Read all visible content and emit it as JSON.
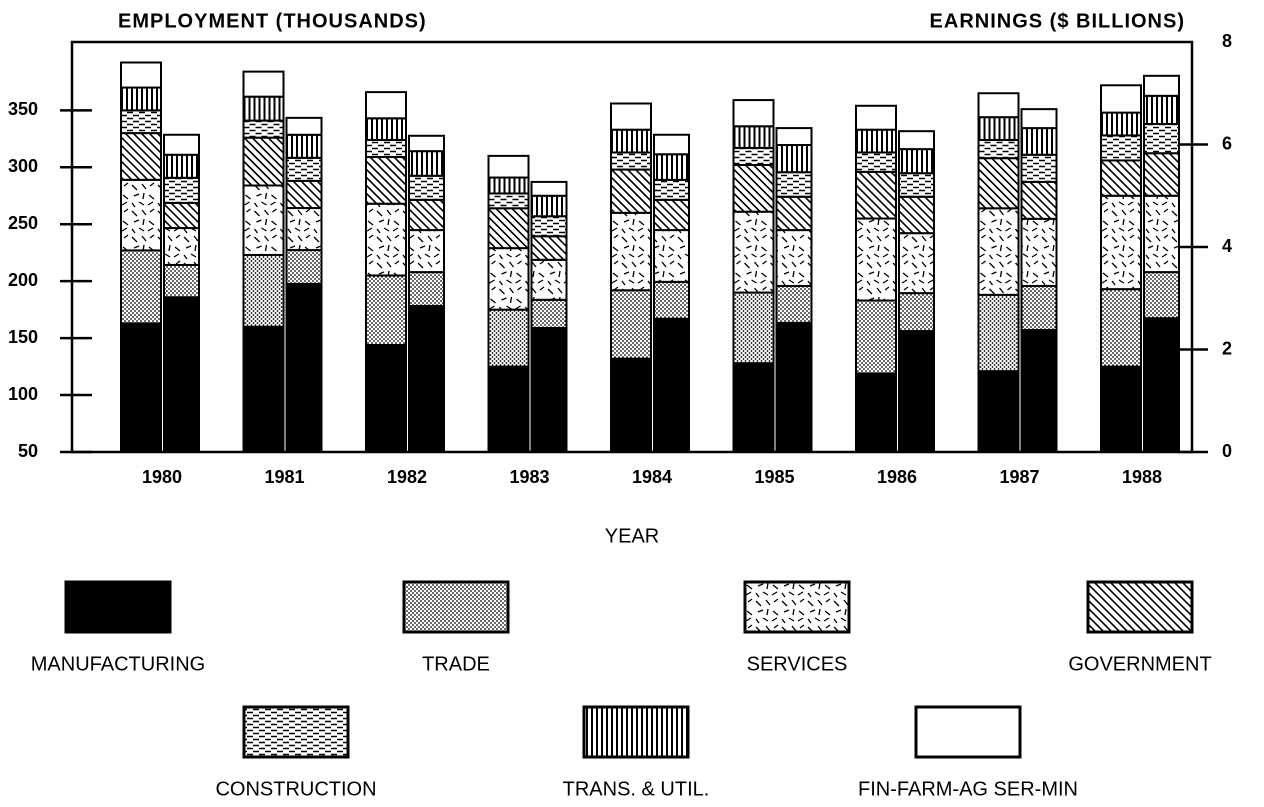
{
  "chart_data": {
    "type": "stacked_bar_dual",
    "title": "EMPLOYMENT (THOUSANDS)",
    "y2_title": "EARNINGS ($ BILLIONS)",
    "x_label": "YEAR",
    "categories": [
      "1980",
      "1981",
      "1982",
      "1983",
      "1984",
      "1985",
      "1986",
      "1987",
      "1988"
    ],
    "ylim": [
      50,
      410
    ],
    "yticks": [
      50,
      100,
      150,
      200,
      250,
      300,
      350
    ],
    "y2lim": [
      0,
      8
    ],
    "y2ticks": [
      0,
      2,
      4,
      6,
      8
    ],
    "series": [
      {
        "name": "MANUFACTURING",
        "fill": "solid",
        "values": [
          163,
          160,
          144,
          125,
          132,
          128,
          119,
          121,
          125
        ],
        "y2_values": [
          3.02,
          3.28,
          2.85,
          2.42,
          2.6,
          2.52,
          2.36,
          2.38,
          2.61
        ]
      },
      {
        "name": "TRADE",
        "fill": "dots",
        "values": [
          64,
          63,
          61,
          50,
          60,
          62,
          64,
          67,
          68
        ],
        "y2_values": [
          0.63,
          0.66,
          0.66,
          0.55,
          0.72,
          0.72,
          0.74,
          0.86,
          0.9
        ]
      },
      {
        "name": "SERVICES",
        "fill": "dashes",
        "values": [
          62,
          61,
          63,
          54,
          68,
          71,
          72,
          76,
          82
        ],
        "y2_values": [
          0.72,
          0.82,
          0.82,
          0.78,
          1.01,
          1.09,
          1.17,
          1.31,
          1.49
        ]
      },
      {
        "name": "GOVERNMENT",
        "fill": "diagonal",
        "values": [
          41,
          42,
          41,
          35,
          38,
          41,
          41,
          44,
          31
        ],
        "y2_values": [
          0.49,
          0.53,
          0.59,
          0.46,
          0.59,
          0.65,
          0.71,
          0.72,
          0.83
        ]
      },
      {
        "name": "CONSTRUCTION",
        "fill": "brick",
        "values": [
          20,
          15,
          15,
          13,
          15,
          15,
          17,
          16,
          22
        ],
        "y2_values": [
          0.49,
          0.45,
          0.47,
          0.39,
          0.39,
          0.48,
          0.46,
          0.53,
          0.57
        ]
      },
      {
        "name": "TRANS. & UTIL.",
        "fill": "vertical",
        "values": [
          20,
          21,
          19,
          14,
          20,
          19,
          20,
          20,
          20
        ],
        "y2_values": [
          0.45,
          0.45,
          0.48,
          0.4,
          0.5,
          0.53,
          0.47,
          0.52,
          0.55
        ]
      },
      {
        "name": "FIN-FARM-AG SER-MIN",
        "fill": "white",
        "values": [
          22,
          22,
          23,
          19,
          23,
          23,
          21,
          21,
          24
        ],
        "y2_values": [
          0.39,
          0.33,
          0.3,
          0.27,
          0.38,
          0.33,
          0.35,
          0.37,
          0.39
        ]
      }
    ]
  }
}
